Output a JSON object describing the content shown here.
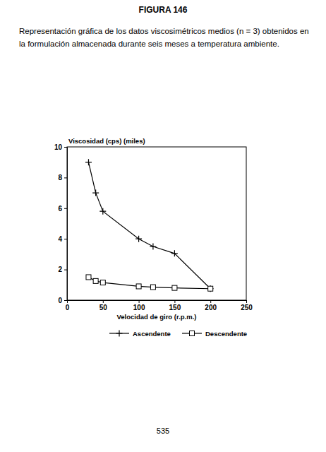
{
  "document": {
    "heading": "FIGURA 146",
    "caption": [
      "Representación gráfica de los datos viscosimétricos medios (n = 3) obtenidos en",
      "la formulación almacenada durante seis meses a temperatura ambiente."
    ],
    "page_number": "535"
  },
  "chart_data": {
    "type": "line",
    "y_label": "Viscosidad (cps) (miles)",
    "x_label": "Velocidad de giro (r.p.m.)",
    "x": [
      30,
      40,
      50,
      100,
      120,
      150,
      200
    ],
    "series": [
      {
        "name": "Ascendente",
        "color": "#000000",
        "marker": "plus",
        "line_style": "solid",
        "values": [
          9,
          7,
          5.8,
          4,
          3.5,
          3.05,
          0.75
        ]
      },
      {
        "name": "Descendente",
        "color": "#000000",
        "marker": "square",
        "line_style": "solid",
        "values": [
          1.5,
          1.25,
          1.15,
          0.9,
          0.85,
          0.8,
          0.75
        ]
      }
    ],
    "xlim": [
      0,
      250
    ],
    "xticks": [
      0,
      50,
      100,
      150,
      200,
      250
    ],
    "ylim": [
      0,
      10
    ],
    "yticks": [
      0,
      2,
      4,
      6,
      8,
      10
    ],
    "grid": false,
    "legend": "bottom"
  }
}
